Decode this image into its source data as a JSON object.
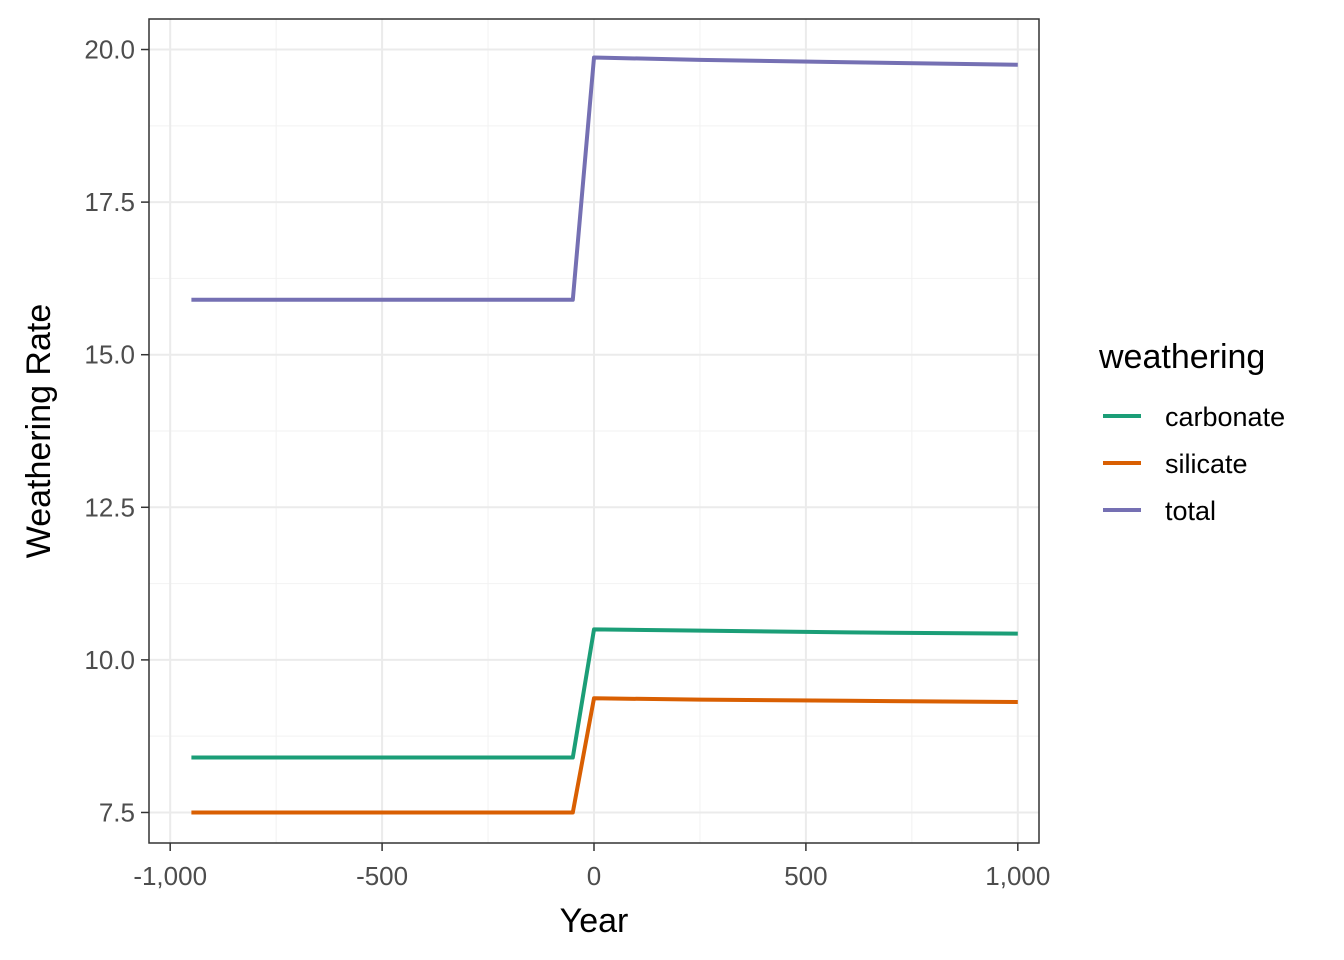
{
  "chart_data": {
    "type": "line",
    "xlabel": "Year",
    "ylabel": "Weathering Rate",
    "xlim": [
      -1000,
      1000
    ],
    "ylim": [
      7.0,
      20.5
    ],
    "x_ticks": [
      -1000,
      -500,
      0,
      500,
      1000
    ],
    "x_tick_labels": [
      "-1,000",
      "-500",
      "0",
      "500",
      "1,000"
    ],
    "y_ticks": [
      7.5,
      10.0,
      12.5,
      15.0,
      17.5,
      20.0
    ],
    "y_tick_labels": [
      "7.5",
      "10.0",
      "12.5",
      "15.0",
      "17.5",
      "20.0"
    ],
    "grid": true,
    "legend": {
      "title": "weathering",
      "position": "right"
    },
    "series": [
      {
        "name": "carbonate",
        "color": "#1b9e77",
        "points": [
          [
            -950,
            8.4
          ],
          [
            -50,
            8.4
          ],
          [
            0,
            10.5
          ],
          [
            250,
            10.48
          ],
          [
            600,
            10.45
          ],
          [
            1000,
            10.43
          ]
        ]
      },
      {
        "name": "silicate",
        "color": "#d95f02",
        "points": [
          [
            -950,
            7.5
          ],
          [
            -50,
            7.5
          ],
          [
            0,
            9.37
          ],
          [
            250,
            9.35
          ],
          [
            600,
            9.33
          ],
          [
            1000,
            9.31
          ]
        ]
      },
      {
        "name": "total",
        "color": "#7570b3",
        "points": [
          [
            -950,
            15.9
          ],
          [
            -50,
            15.9
          ],
          [
            0,
            19.87
          ],
          [
            250,
            19.83
          ],
          [
            600,
            19.79
          ],
          [
            1000,
            19.75
          ]
        ]
      }
    ]
  }
}
